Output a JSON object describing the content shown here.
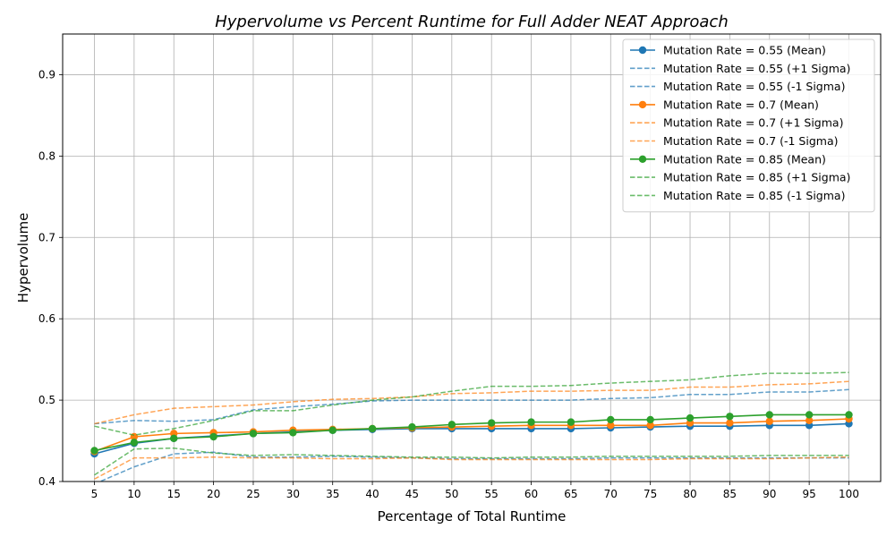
{
  "chart_data": {
    "type": "line",
    "title": "Hypervolume vs Percent Runtime for Full Adder NEAT Approach",
    "xlabel": "Percentage of Total Runtime",
    "ylabel": "Hypervolume",
    "x": [
      5,
      10,
      15,
      20,
      25,
      30,
      35,
      40,
      45,
      50,
      55,
      60,
      65,
      70,
      75,
      80,
      85,
      90,
      95,
      100
    ],
    "xlim": [
      1,
      104
    ],
    "ylim": [
      0.4,
      0.95
    ],
    "yticks": [
      0.4,
      0.5,
      0.6,
      0.7,
      0.8,
      0.9
    ],
    "ytick_labels": [
      "0.4",
      "0.5",
      "0.6",
      "0.7",
      "0.8",
      "0.9"
    ],
    "xtick_labels": [
      "5",
      "10",
      "15",
      "20",
      "25",
      "30",
      "35",
      "40",
      "45",
      "50",
      "55",
      "60",
      "65",
      "70",
      "75",
      "80",
      "85",
      "90",
      "95",
      "100"
    ],
    "grid": true,
    "legend_position": "top-right",
    "series": [
      {
        "name": "Mutation Rate = 0.55 (Mean)",
        "style": "solid-marker",
        "color": "#1f77b4",
        "values": [
          0.434,
          0.447,
          0.453,
          0.456,
          0.459,
          0.461,
          0.463,
          0.464,
          0.465,
          0.465,
          0.465,
          0.465,
          0.465,
          0.466,
          0.467,
          0.468,
          0.468,
          0.469,
          0.469,
          0.471
        ]
      },
      {
        "name": "Mutation Rate = 0.55 (+1 Sigma)",
        "style": "dashed",
        "color": "#1f77b4",
        "values": [
          0.471,
          0.475,
          0.474,
          0.476,
          0.488,
          0.492,
          0.495,
          0.499,
          0.5,
          0.5,
          0.5,
          0.5,
          0.5,
          0.502,
          0.503,
          0.507,
          0.507,
          0.51,
          0.51,
          0.513
        ]
      },
      {
        "name": "Mutation Rate = 0.55 (-1 Sigma)",
        "style": "dashed",
        "color": "#1f77b4",
        "values": [
          0.397,
          0.418,
          0.434,
          0.436,
          0.43,
          0.43,
          0.431,
          0.43,
          0.429,
          0.428,
          0.428,
          0.428,
          0.428,
          0.429,
          0.429,
          0.429,
          0.429,
          0.429,
          0.429,
          0.429
        ]
      },
      {
        "name": "Mutation Rate = 0.7 (Mean)",
        "style": "solid-marker",
        "color": "#ff7f0e",
        "values": [
          0.437,
          0.455,
          0.459,
          0.46,
          0.461,
          0.463,
          0.464,
          0.465,
          0.466,
          0.467,
          0.468,
          0.469,
          0.469,
          0.469,
          0.469,
          0.472,
          0.472,
          0.474,
          0.475,
          0.477
        ]
      },
      {
        "name": "Mutation Rate = 0.7 (+1 Sigma)",
        "style": "dashed",
        "color": "#ff7f0e",
        "values": [
          0.471,
          0.482,
          0.49,
          0.492,
          0.494,
          0.498,
          0.501,
          0.502,
          0.504,
          0.508,
          0.509,
          0.511,
          0.511,
          0.512,
          0.512,
          0.516,
          0.516,
          0.519,
          0.52,
          0.523
        ]
      },
      {
        "name": "Mutation Rate = 0.7 (-1 Sigma)",
        "style": "dashed",
        "color": "#ff7f0e",
        "values": [
          0.403,
          0.429,
          0.429,
          0.43,
          0.429,
          0.429,
          0.428,
          0.428,
          0.429,
          0.427,
          0.427,
          0.427,
          0.427,
          0.427,
          0.427,
          0.428,
          0.428,
          0.428,
          0.429,
          0.43
        ]
      },
      {
        "name": "Mutation Rate = 0.85 (Mean)",
        "style": "solid-marker",
        "color": "#2ca02c",
        "values": [
          0.438,
          0.448,
          0.453,
          0.455,
          0.459,
          0.46,
          0.463,
          0.465,
          0.467,
          0.47,
          0.472,
          0.473,
          0.473,
          0.476,
          0.476,
          0.478,
          0.48,
          0.482,
          0.482,
          0.482
        ]
      },
      {
        "name": "Mutation Rate = 0.85 (+1 Sigma)",
        "style": "dashed",
        "color": "#2ca02c",
        "values": [
          0.468,
          0.457,
          0.465,
          0.475,
          0.487,
          0.487,
          0.494,
          0.5,
          0.504,
          0.511,
          0.517,
          0.517,
          0.518,
          0.521,
          0.523,
          0.525,
          0.53,
          0.533,
          0.533,
          0.534
        ]
      },
      {
        "name": "Mutation Rate = 0.85 (-1 Sigma)",
        "style": "dashed",
        "color": "#2ca02c",
        "values": [
          0.408,
          0.44,
          0.441,
          0.435,
          0.432,
          0.433,
          0.432,
          0.431,
          0.43,
          0.43,
          0.429,
          0.43,
          0.43,
          0.431,
          0.431,
          0.431,
          0.431,
          0.432,
          0.432,
          0.432
        ]
      }
    ]
  }
}
